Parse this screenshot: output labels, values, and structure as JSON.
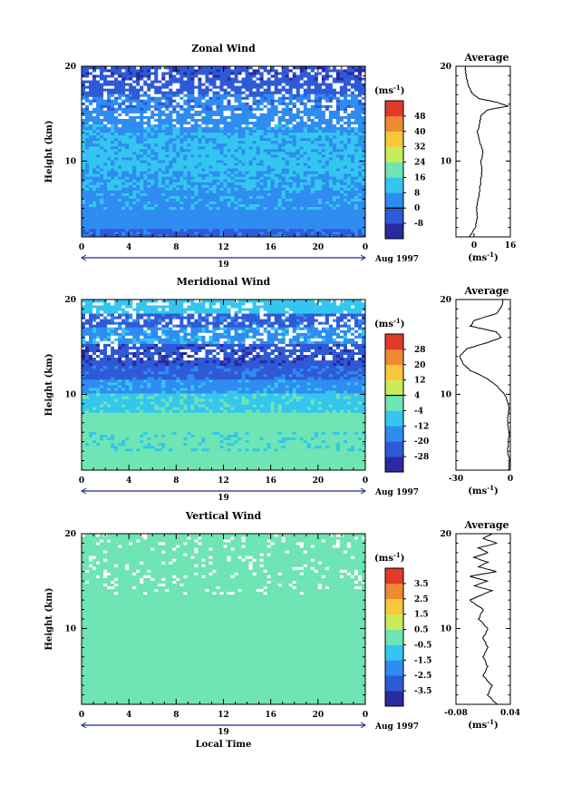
{
  "xlabel_bottom": "Local Time",
  "date_label": "Aug 1997",
  "day_label": "19",
  "unit_label": "(ms",
  "unit_exp": "-1",
  "avg_unit_label": "(ms",
  "avg_unit_exp": "-1",
  "chart_data": [
    {
      "type": "heatmap",
      "title": "Zonal Wind",
      "xlabel": "",
      "ylabel": "Height (km)",
      "xlim": [
        0,
        24
      ],
      "ylim": [
        2,
        20
      ],
      "x_ticks": [
        "0",
        "4",
        "8",
        "12",
        "16",
        "20",
        "0"
      ],
      "y_ticks": [
        "10",
        "20"
      ],
      "colorbar": {
        "ticks": [
          "48",
          "40",
          "32",
          "24",
          "16",
          "8",
          "0",
          "-8"
        ],
        "levels": [
          -8,
          0,
          8,
          16,
          24,
          32,
          40,
          48
        ],
        "colors": [
          "#2a2aa0",
          "#2e5ad8",
          "#2f8cf0",
          "#34c6ef",
          "#6fe4b4",
          "#c9ec5a",
          "#f7c83a",
          "#f08a32",
          "#e23a2a"
        ],
        "zero_line": 0
      },
      "height_bands_km": [
        {
          "from": 2,
          "to": 3,
          "value": -2
        },
        {
          "from": 3,
          "to": 5,
          "value": 4
        },
        {
          "from": 5,
          "to": 7,
          "value": 6
        },
        {
          "from": 7,
          "to": 9,
          "value": 8
        },
        {
          "from": 9,
          "to": 11,
          "value": 10
        },
        {
          "from": 11,
          "to": 13,
          "value": 9
        },
        {
          "from": 13,
          "to": 14,
          "value": 6
        },
        {
          "from": 14,
          "to": 15.5,
          "value": 4
        },
        {
          "from": 15.5,
          "to": 17,
          "value": 2
        },
        {
          "from": 17,
          "to": 18.5,
          "value": -4
        },
        {
          "from": 18.5,
          "to": 20,
          "value": -6
        }
      ],
      "average": {
        "title": "Average",
        "xticks": [
          "0",
          "16"
        ],
        "xlim": [
          -8,
          16
        ],
        "profile": [
          {
            "h": 2.0,
            "v": -2.0
          },
          {
            "h": 3.0,
            "v": 0.5
          },
          {
            "h": 4.0,
            "v": 1.5
          },
          {
            "h": 5.0,
            "v": 1.0
          },
          {
            "h": 6.0,
            "v": 2.0
          },
          {
            "h": 7.0,
            "v": 2.5
          },
          {
            "h": 8.0,
            "v": 3.0
          },
          {
            "h": 9.0,
            "v": 3.5
          },
          {
            "h": 10.0,
            "v": 3.0
          },
          {
            "h": 11.0,
            "v": 4.0
          },
          {
            "h": 12.0,
            "v": 2.5
          },
          {
            "h": 13.0,
            "v": 1.5
          },
          {
            "h": 14.0,
            "v": 2.5
          },
          {
            "h": 14.8,
            "v": 3.0
          },
          {
            "h": 15.4,
            "v": 6.0
          },
          {
            "h": 15.8,
            "v": 15.0
          },
          {
            "h": 16.2,
            "v": 10.0
          },
          {
            "h": 16.6,
            "v": 2.0
          },
          {
            "h": 17.2,
            "v": -1.0
          },
          {
            "h": 18.0,
            "v": -2.5
          },
          {
            "h": 19.0,
            "v": -3.5
          },
          {
            "h": 20.0,
            "v": -4.0
          }
        ]
      }
    },
    {
      "type": "heatmap",
      "title": "Meridional Wind",
      "xlabel": "",
      "ylabel": "Height (km)",
      "xlim": [
        0,
        24
      ],
      "ylim": [
        2,
        20
      ],
      "x_ticks": [
        "0",
        "4",
        "8",
        "12",
        "16",
        "20",
        "0"
      ],
      "y_ticks": [
        "10",
        "20"
      ],
      "colorbar": {
        "ticks": [
          "28",
          "20",
          "12",
          "4",
          "-4",
          "-12",
          "-20",
          "-28"
        ],
        "levels": [
          -28,
          -20,
          -12,
          -4,
          4,
          12,
          20,
          28
        ],
        "colors": [
          "#2a2aa0",
          "#2e5ad8",
          "#2f8cf0",
          "#34c6ef",
          "#6fe4b4",
          "#c9ec5a",
          "#f7c83a",
          "#f08a32",
          "#e23a2a"
        ],
        "zero_line": 4
      },
      "height_bands_km": [
        {
          "from": 2,
          "to": 4,
          "value": 0
        },
        {
          "from": 4,
          "to": 6,
          "value": -2
        },
        {
          "from": 6,
          "to": 8,
          "value": 0
        },
        {
          "from": 8,
          "to": 10,
          "value": -6
        },
        {
          "from": 10,
          "to": 11.5,
          "value": -14
        },
        {
          "from": 11.5,
          "to": 13,
          "value": -22
        },
        {
          "from": 13,
          "to": 15.5,
          "value": -26
        },
        {
          "from": 15.5,
          "to": 17,
          "value": -14
        },
        {
          "from": 17,
          "to": 18.5,
          "value": -22
        },
        {
          "from": 18.5,
          "to": 20,
          "value": -8
        }
      ],
      "average": {
        "title": "Average",
        "xticks": [
          "-30",
          "0"
        ],
        "xlim": [
          -30,
          0
        ],
        "profile": [
          {
            "h": 2.0,
            "v": -1.0
          },
          {
            "h": 3.0,
            "v": -0.5
          },
          {
            "h": 4.0,
            "v": -1.5
          },
          {
            "h": 5.0,
            "v": -1.0
          },
          {
            "h": 6.0,
            "v": -0.5
          },
          {
            "h": 7.0,
            "v": -1.5
          },
          {
            "h": 8.0,
            "v": -1.0
          },
          {
            "h": 9.0,
            "v": -1.0
          },
          {
            "h": 10.0,
            "v": -3.0
          },
          {
            "h": 11.0,
            "v": -8.0
          },
          {
            "h": 11.8,
            "v": -14.0
          },
          {
            "h": 12.5,
            "v": -22.0
          },
          {
            "h": 13.2,
            "v": -26.0
          },
          {
            "h": 14.0,
            "v": -28.0
          },
          {
            "h": 14.8,
            "v": -24.0
          },
          {
            "h": 15.5,
            "v": -12.0
          },
          {
            "h": 16.0,
            "v": -5.0
          },
          {
            "h": 16.6,
            "v": -8.0
          },
          {
            "h": 17.2,
            "v": -22.0
          },
          {
            "h": 17.8,
            "v": -20.0
          },
          {
            "h": 18.5,
            "v": -8.0
          },
          {
            "h": 19.2,
            "v": -5.0
          },
          {
            "h": 20.0,
            "v": -4.0
          }
        ]
      }
    },
    {
      "type": "heatmap",
      "title": "Vertical Wind",
      "xlabel": "Local Time",
      "ylabel": "Height (km)",
      "xlim": [
        0,
        24
      ],
      "ylim": [
        2,
        20
      ],
      "x_ticks": [
        "0",
        "4",
        "8",
        "12",
        "16",
        "20",
        "0"
      ],
      "y_ticks": [
        "10",
        "20"
      ],
      "colorbar": {
        "ticks": [
          "3.5",
          "2.5",
          "1.5",
          "0.5",
          "-0.5",
          "-1.5",
          "-2.5",
          "-3.5"
        ],
        "levels": [
          -3.5,
          -2.5,
          -1.5,
          -0.5,
          0.5,
          1.5,
          2.5,
          3.5
        ],
        "colors": [
          "#2a2aa0",
          "#2e5ad8",
          "#2f8cf0",
          "#34c6ef",
          "#6fe4b4",
          "#c9ec5a",
          "#f7c83a",
          "#f08a32",
          "#e23a2a"
        ],
        "zero_line": null
      },
      "height_bands_km": [
        {
          "from": 2,
          "to": 20,
          "value": 0
        }
      ],
      "average": {
        "title": "Average",
        "xticks": [
          "-0.08",
          "0.04"
        ],
        "xlim": [
          -0.08,
          0.04
        ],
        "profile": [
          {
            "h": 2.0,
            "v": 0.01
          },
          {
            "h": 3.0,
            "v": -0.01
          },
          {
            "h": 4.0,
            "v": 0.0
          },
          {
            "h": 5.0,
            "v": -0.02
          },
          {
            "h": 6.0,
            "v": -0.01
          },
          {
            "h": 7.0,
            "v": -0.02
          },
          {
            "h": 8.0,
            "v": -0.01
          },
          {
            "h": 9.0,
            "v": -0.02
          },
          {
            "h": 10.0,
            "v": -0.01
          },
          {
            "h": 11.0,
            "v": -0.03
          },
          {
            "h": 12.0,
            "v": -0.02
          },
          {
            "h": 13.0,
            "v": -0.05
          },
          {
            "h": 14.0,
            "v": 0.0
          },
          {
            "h": 14.5,
            "v": -0.04
          },
          {
            "h": 15.0,
            "v": -0.01
          },
          {
            "h": 15.5,
            "v": -0.05
          },
          {
            "h": 16.0,
            "v": 0.01
          },
          {
            "h": 16.5,
            "v": -0.03
          },
          {
            "h": 17.0,
            "v": -0.01
          },
          {
            "h": 17.5,
            "v": -0.04
          },
          {
            "h": 18.0,
            "v": -0.01
          },
          {
            "h": 18.5,
            "v": -0.03
          },
          {
            "h": 19.0,
            "v": 0.01
          },
          {
            "h": 19.5,
            "v": -0.02
          },
          {
            "h": 20.0,
            "v": 0.0
          }
        ]
      }
    }
  ]
}
